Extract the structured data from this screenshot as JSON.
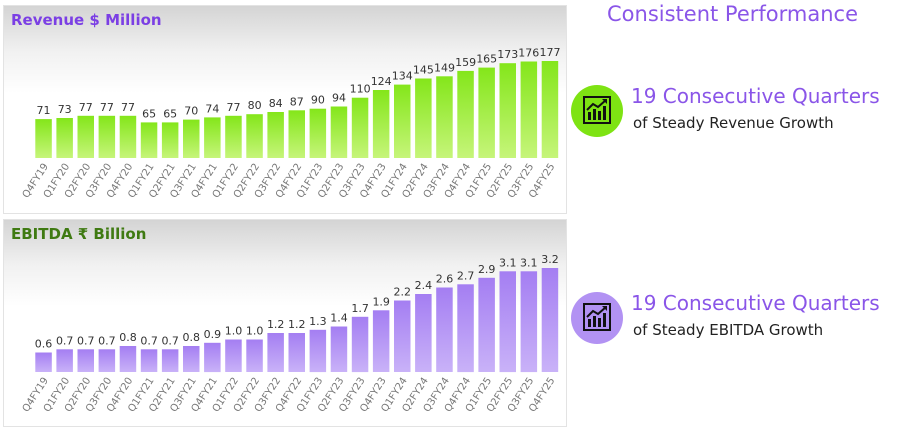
{
  "right_title": "Consistent Performance",
  "kpis": [
    {
      "headline": "19 Consecutive Quarters",
      "sub": "of Steady Revenue Growth",
      "icon": "growth-chart-icon",
      "color": "#7ee313"
    },
    {
      "headline": "19 Consecutive Quarters",
      "sub": "of Steady EBITDA Growth",
      "icon": "growth-chart-icon",
      "color": "#b292f3"
    }
  ],
  "chart_data": [
    {
      "type": "bar",
      "title": "Revenue $ Million",
      "categories": [
        "Q4FY19",
        "Q1FY20",
        "Q2FY20",
        "Q3FY20",
        "Q4FY20",
        "Q1FY21",
        "Q2FY21",
        "Q3FY21",
        "Q4FY21",
        "Q1FY22",
        "Q2FY22",
        "Q3FY22",
        "Q4FY22",
        "Q1FY23",
        "Q2FY23",
        "Q3FY23",
        "Q4FY23",
        "Q1FY24",
        "Q2FY24",
        "Q3FY24",
        "Q4FY24",
        "Q1FY25",
        "Q2FY25",
        "Q3FY25",
        "Q4FY25"
      ],
      "values": [
        71,
        73,
        77,
        77,
        77,
        65,
        65,
        70,
        74,
        77,
        80,
        84,
        87,
        90,
        94,
        110,
        124,
        134,
        145,
        149,
        159,
        165,
        173,
        176,
        177
      ],
      "labels": [
        "71",
        "73",
        "77",
        "77",
        "77",
        "65",
        "65",
        "70",
        "74",
        "77",
        "80",
        "84",
        "87",
        "90",
        "94",
        "110",
        "124",
        "134",
        "145",
        "149",
        "159",
        "165",
        "173",
        "176",
        "177"
      ],
      "ylim": [
        0,
        177
      ],
      "color": "#84e61a",
      "color_light": "#c6f57a",
      "grid": false
    },
    {
      "type": "bar",
      "title": "EBITDA ₹ Billion",
      "categories": [
        "Q4FY19",
        "Q1FY20",
        "Q2FY20",
        "Q3FY20",
        "Q4FY20",
        "Q1FY21",
        "Q2FY21",
        "Q3FY21",
        "Q4FY21",
        "Q1FY22",
        "Q2FY22",
        "Q3FY22",
        "Q4FY22",
        "Q1FY23",
        "Q2FY23",
        "Q3FY23",
        "Q4FY23",
        "Q1FY24",
        "Q2FY24",
        "Q3FY24",
        "Q4FY24",
        "Q1FY25",
        "Q2FY25",
        "Q3FY25",
        "Q4FY25"
      ],
      "values": [
        0.6,
        0.7,
        0.7,
        0.7,
        0.8,
        0.7,
        0.7,
        0.8,
        0.9,
        1.0,
        1.0,
        1.2,
        1.2,
        1.3,
        1.4,
        1.7,
        1.9,
        2.2,
        2.4,
        2.6,
        2.7,
        2.9,
        3.1,
        3.1,
        3.2
      ],
      "labels": [
        "0.6",
        "0.7",
        "0.7",
        "0.7",
        "0.8",
        "0.7",
        "0.7",
        "0.8",
        "0.9",
        "1.0",
        "1.0",
        "1.2",
        "1.2",
        "1.3",
        "1.4",
        "1.7",
        "1.9",
        "2.2",
        "2.4",
        "2.6",
        "2.7",
        "2.9",
        "3.1",
        "3.1",
        "3.2"
      ],
      "ylim": [
        0,
        3.2
      ],
      "color": "#a47ef2",
      "color_light": "#c9b2f8",
      "grid": false
    }
  ]
}
